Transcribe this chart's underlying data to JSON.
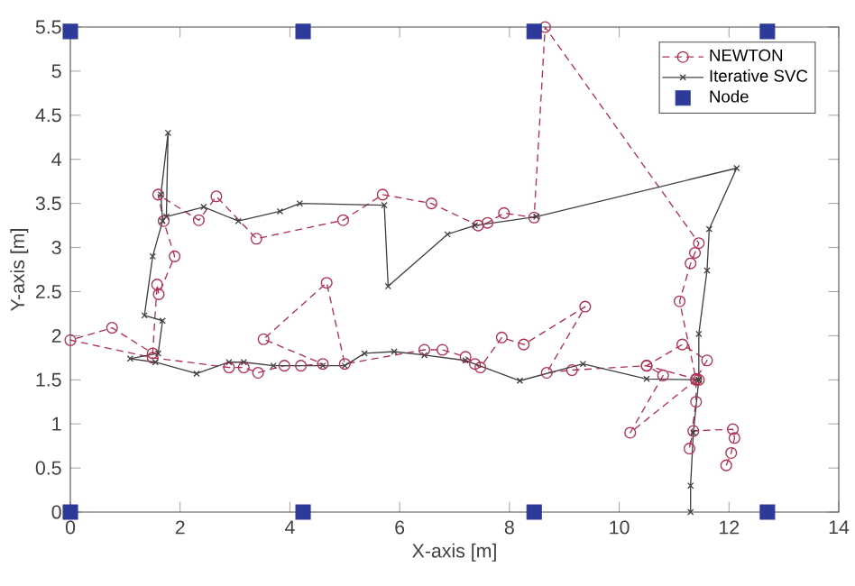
{
  "chart_data": {
    "type": "line",
    "xlabel": "X-axis [m]",
    "ylabel": "Y-axis [m]",
    "xlim": [
      0,
      14
    ],
    "xticks": [
      0,
      2,
      4,
      6,
      8,
      10,
      12,
      14
    ],
    "ylim": [
      0,
      5.5
    ],
    "yticks": [
      0,
      0.5,
      1,
      1.5,
      2,
      2.5,
      3,
      3.5,
      4,
      4.5,
      5,
      5.5
    ],
    "grid": false,
    "legend": "top right",
    "series": [
      {
        "name": "NEWTON",
        "color": "#b03050",
        "marker": "circle",
        "line_style": "dashed",
        "x": [
          11.95,
          12.04,
          12.1,
          12.07,
          11.35,
          11.28,
          11.4,
          11.4,
          11.6,
          11.15,
          10.5,
          10.8,
          10.2,
          11.4,
          11.1,
          11.3,
          11.38,
          11.45,
          8.65,
          8.45,
          7.9,
          7.6,
          7.43,
          6.58,
          5.69,
          4.97,
          3.39,
          2.66,
          2.34,
          1.6,
          1.7,
          1.9,
          1.61,
          1.58,
          1.5,
          0.76,
          0,
          1.5,
          2.89,
          3.16,
          3.42,
          3.9,
          4.2,
          4.6,
          3.52,
          4.67,
          5.0,
          6.45,
          6.78,
          7.2,
          7.37,
          7.47,
          7.86,
          8.26,
          9.38,
          8.68,
          9.14,
          10.5,
          11.45
        ],
        "values": [
          0.53,
          0.67,
          0.84,
          0.94,
          0.92,
          0.72,
          1.25,
          1.51,
          1.72,
          1.9,
          1.66,
          1.55,
          0.9,
          1.5,
          2.39,
          2.82,
          2.94,
          3.05,
          5.5,
          3.34,
          3.39,
          3.28,
          3.25,
          3.5,
          3.6,
          3.31,
          3.1,
          3.58,
          3.31,
          3.6,
          3.3,
          2.9,
          2.47,
          2.58,
          1.8,
          2.09,
          1.95,
          1.75,
          1.64,
          1.64,
          1.58,
          1.66,
          1.66,
          1.68,
          1.96,
          2.6,
          1.68,
          1.84,
          1.84,
          1.76,
          1.68,
          1.64,
          1.98,
          1.9,
          2.33,
          1.58,
          1.61,
          1.66,
          1.5
        ]
      },
      {
        "name": "Iterative SVC",
        "color": "#404040",
        "marker": "cross",
        "line_style": "solid",
        "x": [
          11.3,
          11.3,
          11.35,
          11.45,
          11.45,
          11.6,
          11.64,
          12.14,
          8.49,
          7.37,
          6.87,
          5.79,
          5.72,
          4.18,
          3.82,
          3.06,
          2.43,
          1.75,
          1.78,
          1.65,
          1.68,
          1.5,
          1.35,
          1.68,
          1.6,
          1.09,
          1.55,
          2.3,
          2.89,
          3.16,
          3.7,
          4.6,
          5.0,
          5.36,
          5.9,
          6.45,
          7.2,
          8.19,
          9.34,
          10.5,
          11.45
        ],
        "values": [
          0,
          0.3,
          0.9,
          1.5,
          2.02,
          2.74,
          3.21,
          3.9,
          3.35,
          3.25,
          3.15,
          2.56,
          3.48,
          3.5,
          3.41,
          3.3,
          3.46,
          3.35,
          4.3,
          3.6,
          3.3,
          2.9,
          2.23,
          2.17,
          1.8,
          1.74,
          1.7,
          1.57,
          1.7,
          1.7,
          1.66,
          1.66,
          1.66,
          1.8,
          1.82,
          1.78,
          1.72,
          1.49,
          1.68,
          1.51,
          1.5
        ]
      },
      {
        "name": "Node",
        "type": "scatter",
        "color": "#2e3a9a",
        "marker": "square",
        "x": [
          0,
          4.24,
          8.45,
          12.7,
          0,
          4.24,
          8.45,
          12.7
        ],
        "values": [
          0,
          0,
          0,
          0,
          5.45,
          5.45,
          5.45,
          5.45
        ]
      }
    ]
  }
}
